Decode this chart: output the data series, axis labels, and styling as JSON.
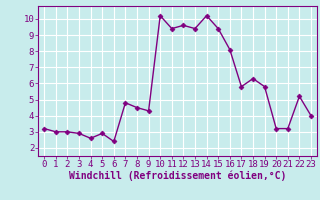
{
  "x": [
    0,
    1,
    2,
    3,
    4,
    5,
    6,
    7,
    8,
    9,
    10,
    11,
    12,
    13,
    14,
    15,
    16,
    17,
    18,
    19,
    20,
    21,
    22,
    23
  ],
  "y": [
    3.2,
    3.0,
    3.0,
    2.9,
    2.6,
    2.9,
    2.4,
    4.8,
    4.5,
    4.3,
    10.2,
    9.4,
    9.6,
    9.4,
    10.2,
    9.4,
    8.1,
    5.8,
    6.3,
    5.8,
    3.2,
    3.2,
    5.2,
    4.0
  ],
  "line_color": "#800080",
  "marker": "D",
  "marker_size": 2.5,
  "bg_color": "#c8ecec",
  "grid_color": "#ffffff",
  "xlabel": "Windchill (Refroidissement éolien,°C)",
  "xlim": [
    -0.5,
    23.5
  ],
  "ylim": [
    1.5,
    10.8
  ],
  "yticks": [
    2,
    3,
    4,
    5,
    6,
    7,
    8,
    9,
    10
  ],
  "xticks": [
    0,
    1,
    2,
    3,
    4,
    5,
    6,
    7,
    8,
    9,
    10,
    11,
    12,
    13,
    14,
    15,
    16,
    17,
    18,
    19,
    20,
    21,
    22,
    23
  ],
  "tick_label_fontsize": 6.5,
  "xlabel_fontsize": 7,
  "label_color": "#800080",
  "spine_color": "#800080",
  "line_width": 1.0
}
